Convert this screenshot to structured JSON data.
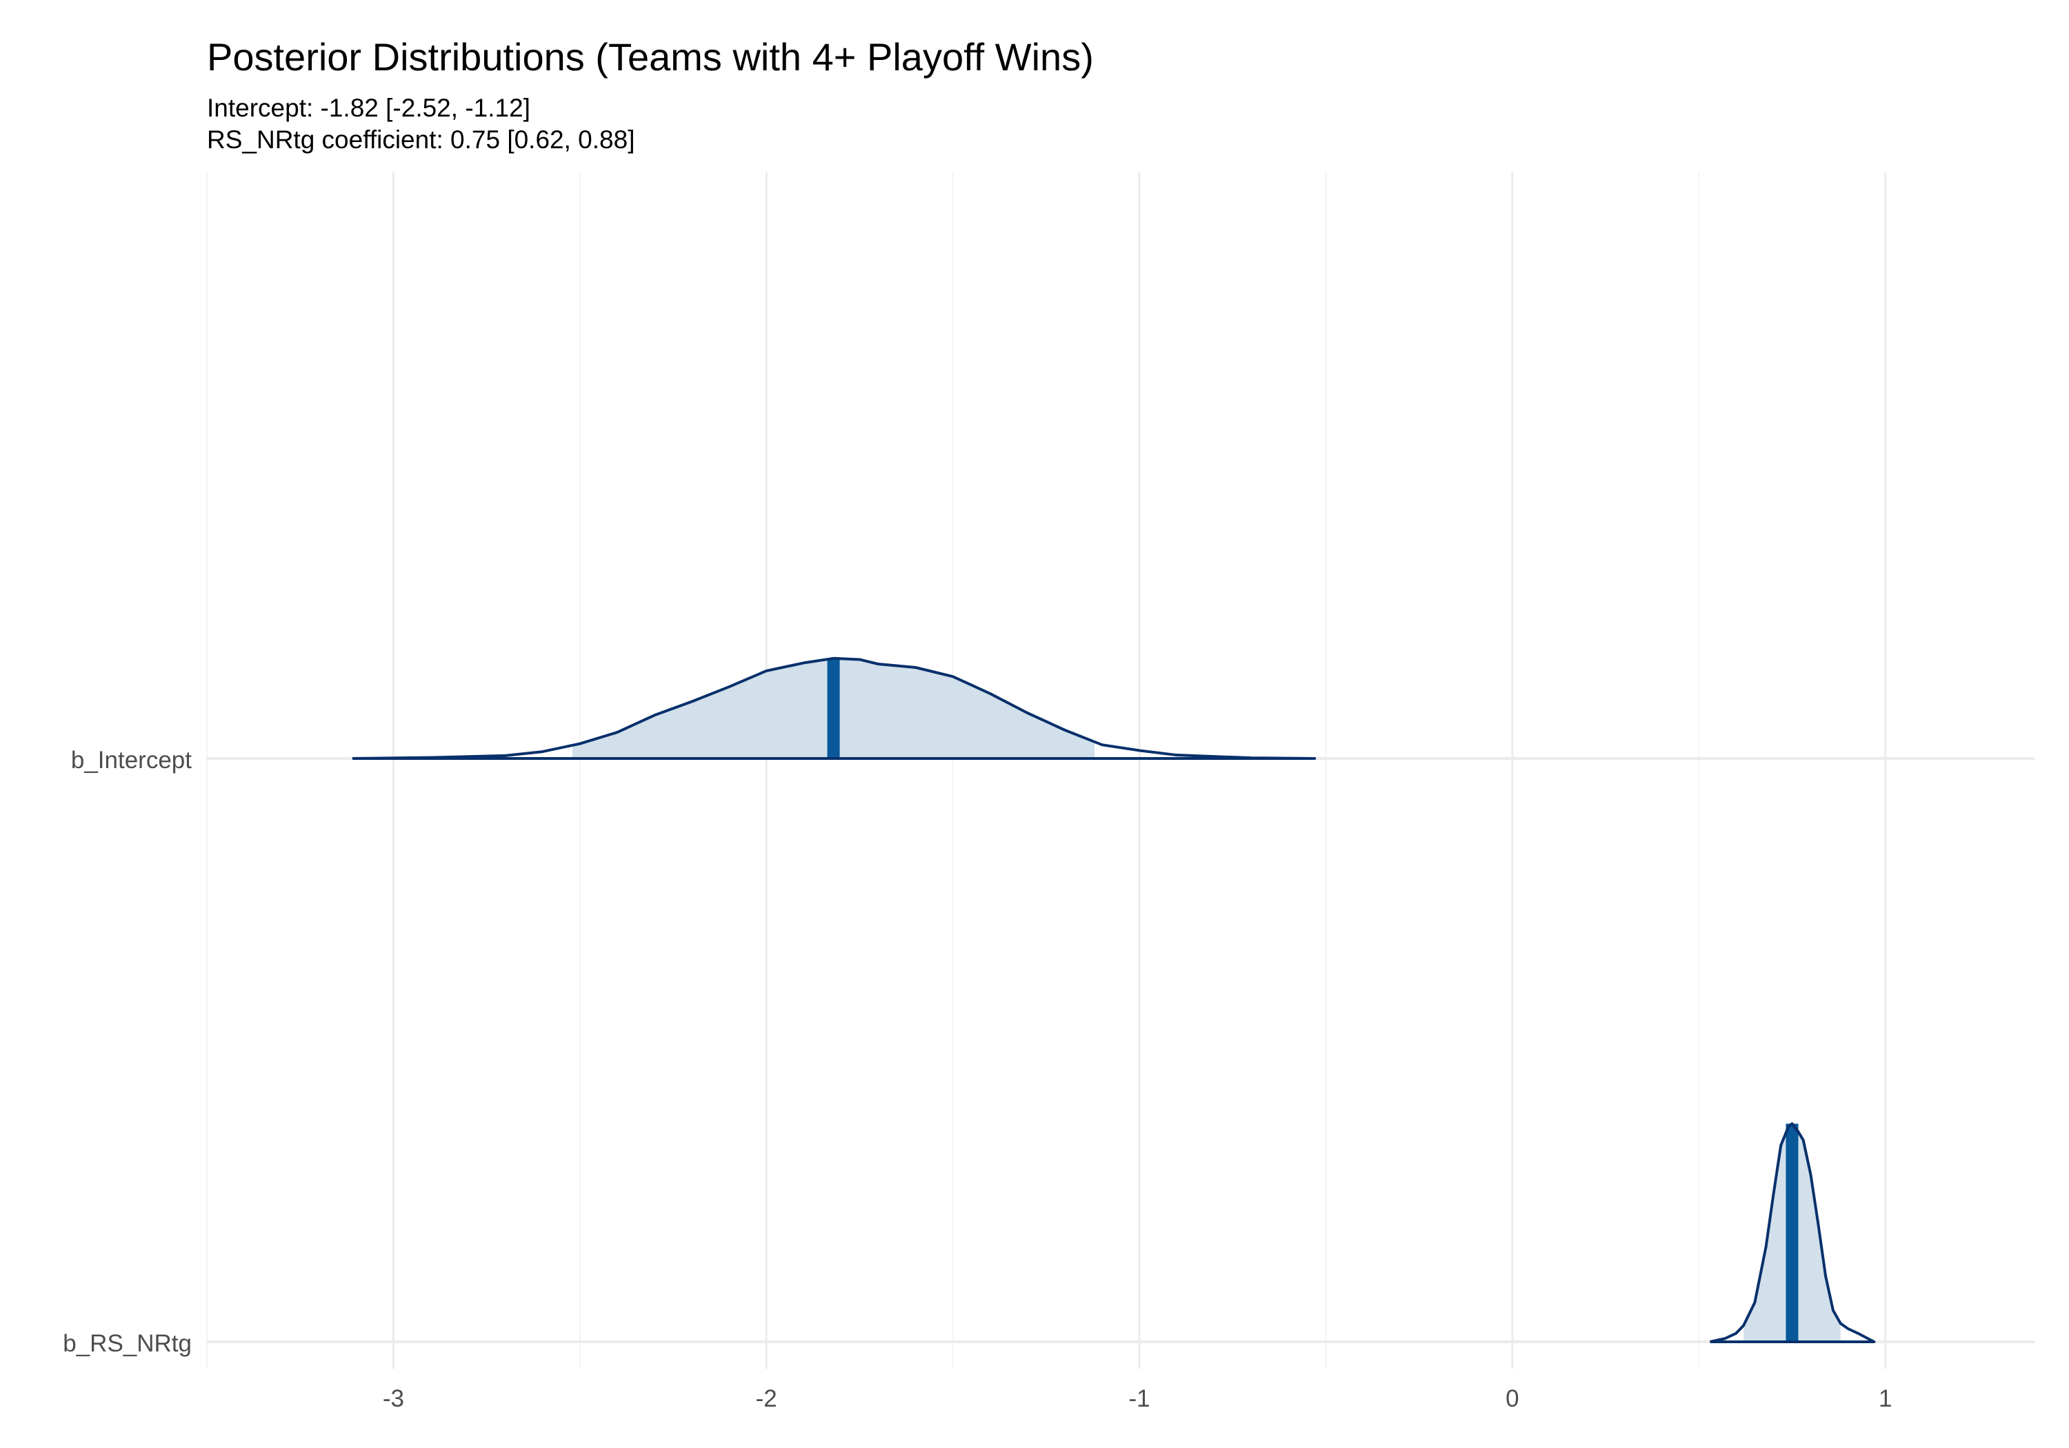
{
  "chart_data": {
    "type": "area",
    "title": "Posterior Distributions (Teams with 4+ Playoff Wins)",
    "subtitle_lines": [
      "Intercept: -1.82 [-2.52, -1.12]",
      "RS_NRtg coefficient: 0.75 [0.62, 0.88]"
    ],
    "xlabel": "",
    "ylabel": "",
    "xlim": [
      -3.5,
      1.4
    ],
    "x_ticks": [
      -3,
      -2,
      -1,
      0,
      1
    ],
    "x_tick_labels": [
      "-3",
      "-2",
      "-1",
      "0",
      "1"
    ],
    "grid": true,
    "legend": "none",
    "colors": {
      "outline": "#08306b",
      "fill": "#d1e0eb",
      "median_line": "#08589a",
      "grid_major": "#ebebeb",
      "grid_minor": "#f3f3f3",
      "tick_label": "#4d4d4d",
      "title": "#000000"
    },
    "series": [
      {
        "name": "b_Intercept",
        "median": -1.82,
        "interval": [
          -2.52,
          -1.12
        ],
        "density": [
          [
            -3.11,
            0.0
          ],
          [
            -2.9,
            0.008
          ],
          [
            -2.7,
            0.025
          ],
          [
            -2.6,
            0.06
          ],
          [
            -2.5,
            0.13
          ],
          [
            -2.4,
            0.23
          ],
          [
            -2.3,
            0.38
          ],
          [
            -2.2,
            0.5
          ],
          [
            -2.1,
            0.63
          ],
          [
            -2.0,
            0.77
          ],
          [
            -1.9,
            0.84
          ],
          [
            -1.82,
            0.88
          ],
          [
            -1.75,
            0.87
          ],
          [
            -1.7,
            0.83
          ],
          [
            -1.6,
            0.8
          ],
          [
            -1.5,
            0.72
          ],
          [
            -1.4,
            0.57
          ],
          [
            -1.3,
            0.4
          ],
          [
            -1.2,
            0.25
          ],
          [
            -1.1,
            0.12
          ],
          [
            -1.0,
            0.07
          ],
          [
            -0.9,
            0.03
          ],
          [
            -0.7,
            0.005
          ],
          [
            -0.53,
            0.0
          ]
        ]
      },
      {
        "name": "b_RS_NRtg",
        "median": 0.75,
        "interval": [
          0.62,
          0.88
        ],
        "density": [
          [
            0.53,
            0.0
          ],
          [
            0.57,
            0.05
          ],
          [
            0.6,
            0.13
          ],
          [
            0.62,
            0.25
          ],
          [
            0.65,
            0.6
          ],
          [
            0.68,
            1.45
          ],
          [
            0.7,
            2.25
          ],
          [
            0.72,
            3.0
          ],
          [
            0.74,
            3.28
          ],
          [
            0.75,
            3.33
          ],
          [
            0.765,
            3.22
          ],
          [
            0.78,
            3.08
          ],
          [
            0.8,
            2.55
          ],
          [
            0.82,
            1.8
          ],
          [
            0.84,
            1.0
          ],
          [
            0.86,
            0.48
          ],
          [
            0.88,
            0.28
          ],
          [
            0.9,
            0.2
          ],
          [
            0.93,
            0.12
          ],
          [
            0.97,
            0.0
          ]
        ]
      }
    ]
  }
}
